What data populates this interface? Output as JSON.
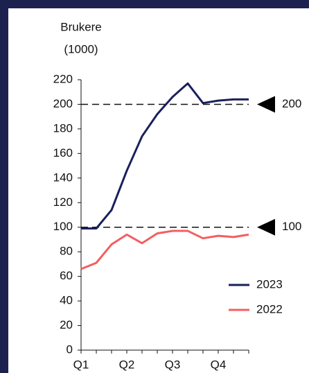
{
  "chart_data": {
    "type": "line",
    "ylabel": [
      "Brukere",
      "(1000)"
    ],
    "categories": [
      "Q1",
      null,
      null,
      "Q2",
      null,
      null,
      "Q3",
      null,
      null,
      "Q4",
      null,
      null
    ],
    "series": [
      {
        "name": "2023",
        "color": "#1b1f5c",
        "values": [
          99,
          99,
          114,
          146,
          174,
          192,
          206,
          217,
          201,
          203,
          204,
          204
        ]
      },
      {
        "name": "2022",
        "color": "#f45e5e",
        "values": [
          66,
          71,
          86,
          94,
          87,
          95,
          97,
          97,
          91,
          93,
          92,
          94
        ]
      }
    ],
    "reference_lines": [
      200,
      100
    ],
    "ylim": [
      0,
      220
    ],
    "yticks": [
      0,
      20,
      40,
      60,
      80,
      100,
      120,
      140,
      160,
      180,
      200,
      220
    ],
    "legend": "lower right"
  }
}
